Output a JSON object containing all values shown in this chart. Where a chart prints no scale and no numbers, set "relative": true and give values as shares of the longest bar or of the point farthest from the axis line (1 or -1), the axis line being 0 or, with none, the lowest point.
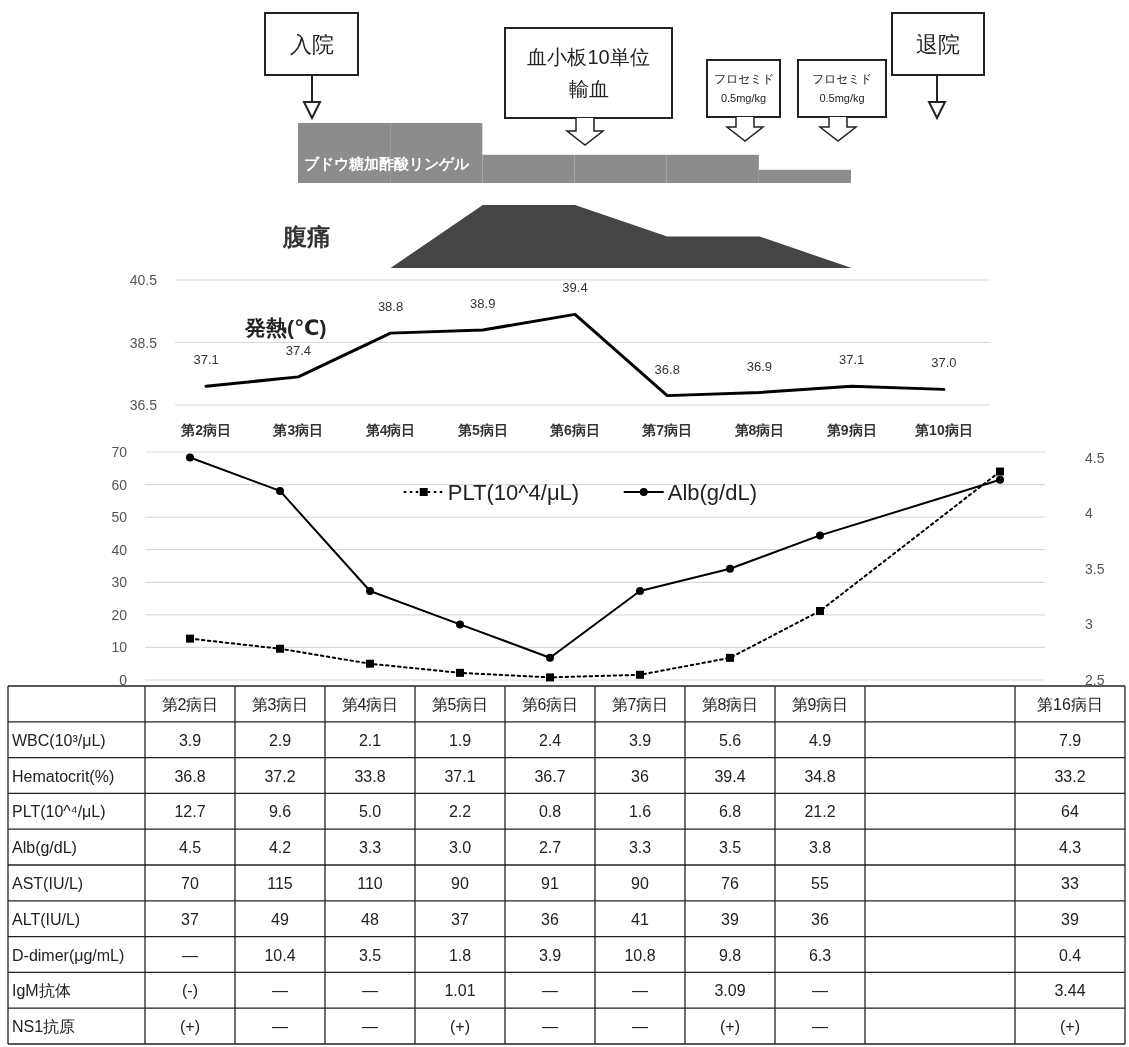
{
  "chart_data": [
    {
      "type": "bar",
      "categories": [
        null,
        null,
        null,
        null,
        null,
        null
      ],
      "relative": true,
      "tick_labels": false,
      "series": [
        {
          "color": "#8c8c8c",
          "values": [
            1,
            1,
            0.47,
            0.47,
            0.47,
            0.22
          ]
        }
      ],
      "annotations": [
        "入院",
        "血小板10単位輸血",
        "フロセミド0.5mg/kg",
        "フロセミド0.5mg/kg",
        "退院",
        "ブドウ糖加酢酸リンゲル"
      ]
    },
    {
      "type": "area",
      "categories": [
        null,
        null,
        null,
        null,
        null,
        null,
        null,
        null,
        null
      ],
      "relative": true,
      "tick_labels": false,
      "series": [
        {
          "name": "腹痛",
          "color": "#454545",
          "values": [
            null,
            null,
            0,
            1,
            1,
            0.5,
            0.5,
            0,
            null
          ]
        }
      ]
    },
    {
      "type": "line",
      "title": "発熱(℃)",
      "categories": [
        "第2病日",
        "第3病日",
        "第4病日",
        "第5病日",
        "第6病日",
        "第7病日",
        "第8病日",
        "第9病日",
        "第10病日"
      ],
      "ylim": [
        36.5,
        40.5
      ],
      "yticks": [
        36.5,
        38.5,
        40.5
      ],
      "grid": "y",
      "series": [
        {
          "color": "#000000",
          "values": [
            37.1,
            37.4,
            38.8,
            38.9,
            39.4,
            36.8,
            36.9,
            37.1,
            37.0
          ],
          "value_labels": [
            "37.1",
            "37.4",
            "38.8",
            "38.9",
            "39.4",
            "36.8",
            "36.9",
            "37.1",
            "37.0"
          ]
        }
      ]
    },
    {
      "type": "line",
      "categories": [
        null,
        null,
        null,
        null,
        null,
        null,
        null,
        null,
        null,
        null
      ],
      "tick_labels": "y",
      "ylim": [
        0,
        70
      ],
      "yticks": [
        0,
        10,
        20,
        30,
        40,
        50,
        60,
        70
      ],
      "y2lim": [
        2.5,
        4.55
      ],
      "y2ticks": [
        2.5,
        3,
        3.5,
        4,
        4.5
      ],
      "grid": "y",
      "legend": "top",
      "series": [
        {
          "name": "PLT(10^4/μL)",
          "color": "#000000",
          "marker": "square",
          "line_style": "dotted",
          "values": [
            12.7,
            9.6,
            5.0,
            2.2,
            0.8,
            1.6,
            6.8,
            21.2,
            null,
            64
          ]
        },
        {
          "name": "Alb(g/dL)",
          "color": "#000000",
          "marker": "circle",
          "line_style": "solid",
          "axis": "y2",
          "values": [
            4.5,
            4.2,
            3.3,
            3.0,
            2.7,
            3.3,
            3.5,
            3.8,
            null,
            4.3
          ]
        }
      ]
    },
    {
      "type": "heatmap",
      "categories": [
        "第2病日",
        "第3病日",
        "第4病日",
        "第5病日",
        "第6病日",
        "第7病日",
        "第8病日",
        "第9病日",
        null,
        "第16病日"
      ],
      "y_categories": [
        "WBC(10³/μL)",
        "Hematocrit(%)",
        "PLT(10^⁴/μL)",
        "Alb(g/dL)",
        "AST(IU/L)",
        "ALT(IU/L)",
        "D-dimer(μg/mL)",
        "IgM抗体",
        "NS1抗原"
      ],
      "cells": [
        [
          null,
          null,
          null,
          null,
          null,
          null,
          null,
          null,
          null,
          null
        ],
        [
          null,
          null,
          null,
          null,
          null,
          null,
          null,
          null,
          null,
          null
        ],
        [
          null,
          null,
          null,
          null,
          null,
          null,
          null,
          null,
          null,
          null
        ],
        [
          null,
          null,
          null,
          null,
          null,
          null,
          null,
          null,
          null,
          null
        ],
        [
          null,
          null,
          null,
          null,
          null,
          null,
          null,
          null,
          null,
          null
        ],
        [
          null,
          null,
          null,
          null,
          null,
          null,
          null,
          null,
          null,
          null
        ],
        [
          null,
          null,
          null,
          null,
          null,
          null,
          null,
          null,
          null,
          null
        ],
        [
          null,
          null,
          null,
          null,
          null,
          null,
          null,
          null,
          null,
          null
        ],
        [
          null,
          null,
          null,
          null,
          null,
          null,
          null,
          null,
          null,
          null
        ]
      ],
      "cell_labels": [
        [
          "3.9",
          "2.9",
          "2.1",
          "1.9",
          "2.4",
          "3.9",
          "5.6",
          "4.9",
          null,
          "7.9"
        ],
        [
          "36.8",
          "37.2",
          "33.8",
          "37.1",
          "36.7",
          "36",
          "39.4",
          "34.8",
          null,
          "33.2"
        ],
        [
          "12.7",
          "9.6",
          "5.0",
          "2.2",
          "0.8",
          "1.6",
          "6.8",
          "21.2",
          null,
          "64"
        ],
        [
          "4.5",
          "4.2",
          "3.3",
          "3.0",
          "2.7",
          "3.3",
          "3.5",
          "3.8",
          null,
          "4.3"
        ],
        [
          "70",
          "115",
          "110",
          "90",
          "91",
          "90",
          "76",
          "55",
          null,
          "33"
        ],
        [
          "37",
          "49",
          "48",
          "37",
          "36",
          "41",
          "39",
          "36",
          null,
          "39"
        ],
        [
          "—",
          "10.4",
          "3.5",
          "1.8",
          "3.9",
          "10.8",
          "9.8",
          "6.3",
          null,
          "0.4"
        ],
        [
          "(-)",
          "—",
          "—",
          "1.01",
          "—",
          "—",
          "3.09",
          "—",
          null,
          "3.44"
        ],
        [
          "(+)",
          "—",
          "—",
          "(+)",
          "—",
          "—",
          "(+)",
          "—",
          null,
          "(+)"
        ]
      ]
    }
  ]
}
